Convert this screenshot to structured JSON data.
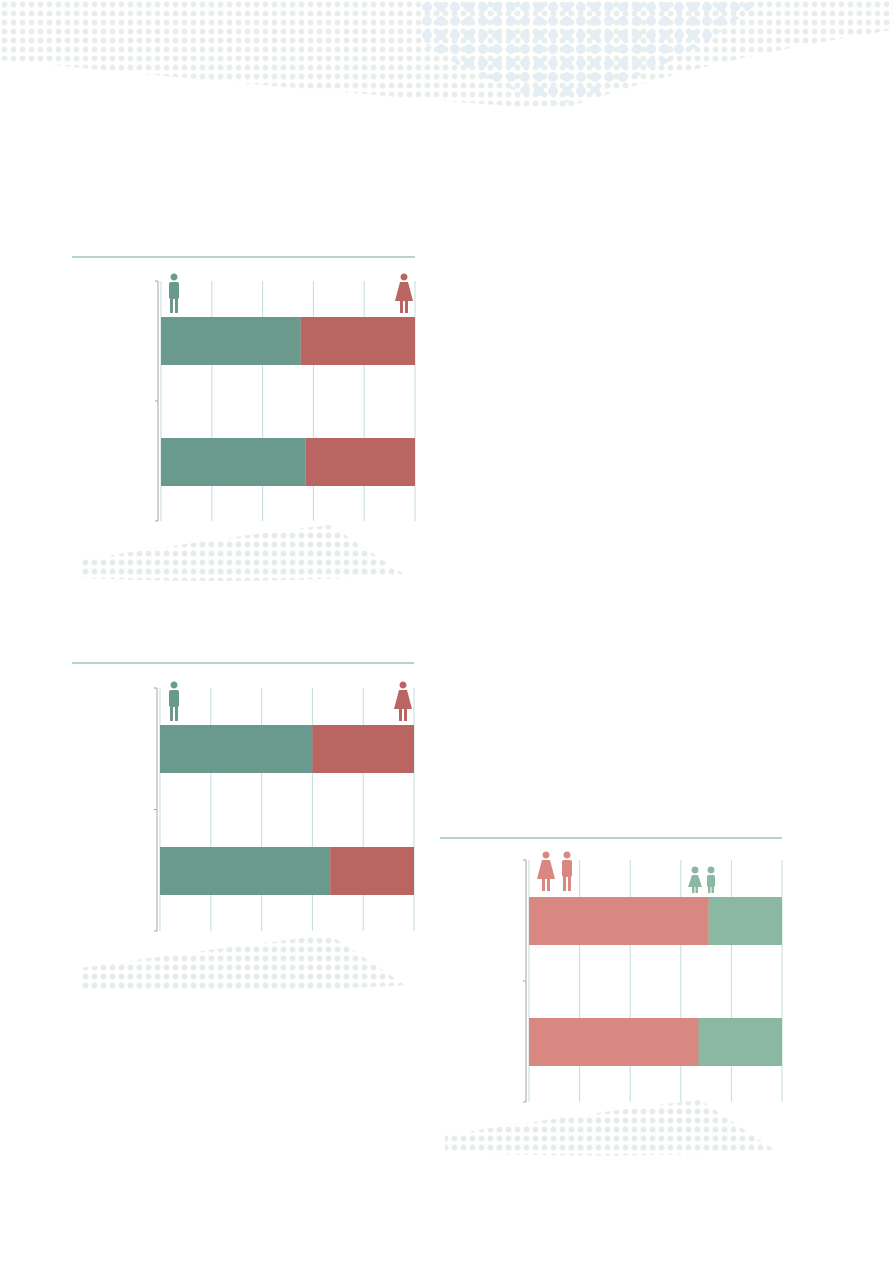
{
  "chart_data": [
    {
      "type": "bar",
      "orientation": "horizontal",
      "stacked": true,
      "categories": [
        null,
        null
      ],
      "series": [
        {
          "color": "#6a9a8e",
          "values": [
            55,
            57
          ]
        },
        {
          "color": "#bb6563",
          "values": [
            45,
            43
          ]
        }
      ],
      "xlim": [
        0,
        100
      ],
      "xticks": [
        0,
        20,
        40,
        60,
        80,
        100
      ],
      "grid": true
    },
    {
      "type": "bar",
      "orientation": "horizontal",
      "stacked": true,
      "categories": [
        null,
        null
      ],
      "series": [
        {
          "color": "#6a9a8e",
          "values": [
            60,
            67
          ]
        },
        {
          "color": "#bb6563",
          "values": [
            40,
            33
          ]
        }
      ],
      "xlim": [
        0,
        100
      ],
      "xticks": [
        0,
        20,
        40,
        60,
        80,
        100
      ],
      "grid": true
    },
    {
      "type": "bar",
      "orientation": "horizontal",
      "stacked": true,
      "categories": [
        null,
        null
      ],
      "series": [
        {
          "color": "#d88880",
          "values": [
            71,
            67
          ]
        },
        {
          "color": "#8ab8a3",
          "values": [
            29,
            33
          ]
        }
      ],
      "xlim": [
        0,
        100
      ],
      "xticks": [
        0,
        20,
        40,
        60,
        80,
        100
      ],
      "grid": true
    }
  ]
}
